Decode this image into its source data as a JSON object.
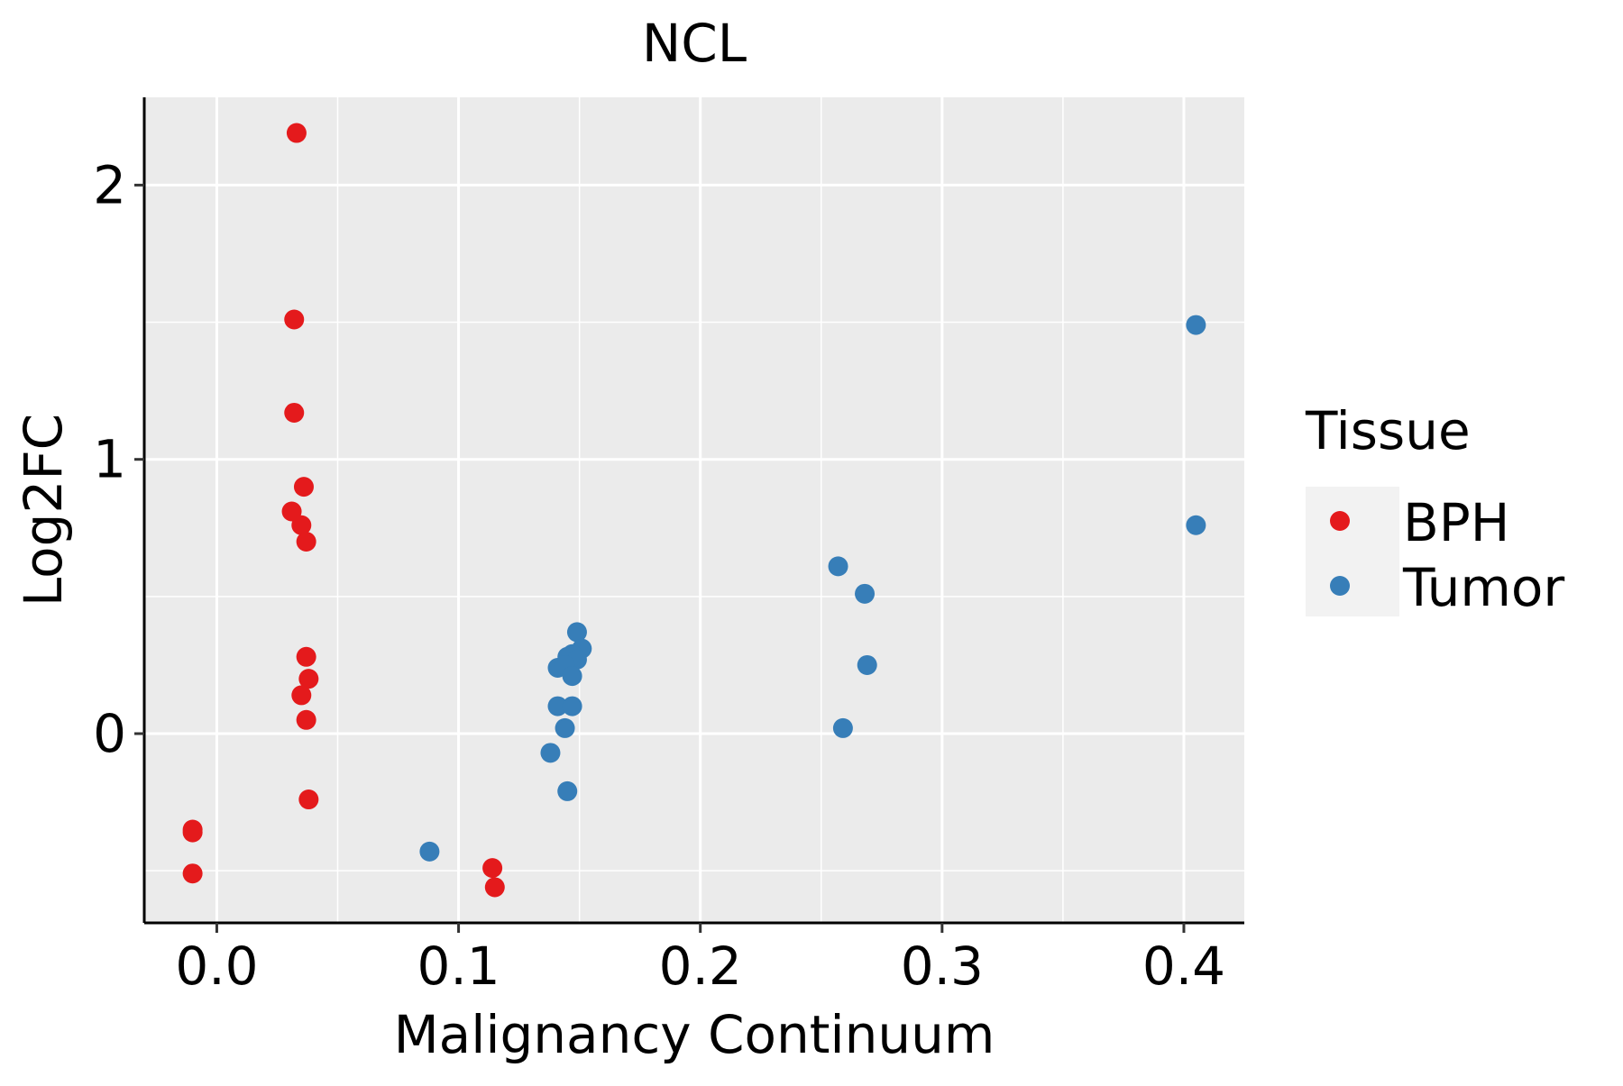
{
  "chart_data": {
    "type": "scatter",
    "title": "NCL",
    "xlabel": "Malignancy Continuum",
    "ylabel": "Log2FC",
    "xlim": [
      -0.03,
      0.425
    ],
    "ylim": [
      -0.69,
      2.32
    ],
    "x_ticks": [
      {
        "value": 0.0,
        "label": "0.0"
      },
      {
        "value": 0.1,
        "label": "0.1"
      },
      {
        "value": 0.2,
        "label": "0.2"
      },
      {
        "value": 0.3,
        "label": "0.3"
      },
      {
        "value": 0.4,
        "label": "0.4"
      }
    ],
    "x_minor_ticks": [
      0.05,
      0.15,
      0.25,
      0.35
    ],
    "y_ticks": [
      {
        "value": 0,
        "label": "0"
      },
      {
        "value": 1,
        "label": "1"
      },
      {
        "value": 2,
        "label": "2"
      }
    ],
    "y_minor_ticks": [
      -0.5,
      0.5,
      1.5
    ],
    "grid": true,
    "legend": {
      "title": "Tissue",
      "placement": "right",
      "entries": [
        {
          "label": "BPH",
          "color": "#e41a1c"
        },
        {
          "label": "Tumor",
          "color": "#377eb8"
        }
      ]
    },
    "series": [
      {
        "name": "BPH",
        "color": "#e41a1c",
        "points": [
          {
            "x": 0.033,
            "y": 2.19
          },
          {
            "x": 0.032,
            "y": 1.51
          },
          {
            "x": 0.032,
            "y": 1.17
          },
          {
            "x": 0.036,
            "y": 0.9
          },
          {
            "x": 0.031,
            "y": 0.81
          },
          {
            "x": 0.035,
            "y": 0.76
          },
          {
            "x": 0.037,
            "y": 0.7
          },
          {
            "x": 0.037,
            "y": 0.28
          },
          {
            "x": 0.038,
            "y": 0.2
          },
          {
            "x": 0.035,
            "y": 0.14
          },
          {
            "x": 0.037,
            "y": 0.05
          },
          {
            "x": 0.038,
            "y": -0.24
          },
          {
            "x": -0.01,
            "y": -0.35
          },
          {
            "x": -0.01,
            "y": -0.36
          },
          {
            "x": -0.01,
            "y": -0.51
          },
          {
            "x": 0.114,
            "y": -0.49
          },
          {
            "x": 0.115,
            "y": -0.56
          }
        ]
      },
      {
        "name": "Tumor",
        "color": "#377eb8",
        "points": [
          {
            "x": 0.405,
            "y": 1.49
          },
          {
            "x": 0.405,
            "y": 0.76
          },
          {
            "x": 0.257,
            "y": 0.61
          },
          {
            "x": 0.268,
            "y": 0.51
          },
          {
            "x": 0.269,
            "y": 0.25
          },
          {
            "x": 0.259,
            "y": 0.02
          },
          {
            "x": 0.149,
            "y": 0.37
          },
          {
            "x": 0.151,
            "y": 0.31
          },
          {
            "x": 0.147,
            "y": 0.29
          },
          {
            "x": 0.145,
            "y": 0.28
          },
          {
            "x": 0.149,
            "y": 0.27
          },
          {
            "x": 0.141,
            "y": 0.24
          },
          {
            "x": 0.144,
            "y": 0.25
          },
          {
            "x": 0.147,
            "y": 0.21
          },
          {
            "x": 0.141,
            "y": 0.1
          },
          {
            "x": 0.147,
            "y": 0.1
          },
          {
            "x": 0.144,
            "y": 0.02
          },
          {
            "x": 0.138,
            "y": -0.07
          },
          {
            "x": 0.145,
            "y": -0.21
          },
          {
            "x": 0.088,
            "y": -0.43
          }
        ]
      }
    ]
  }
}
